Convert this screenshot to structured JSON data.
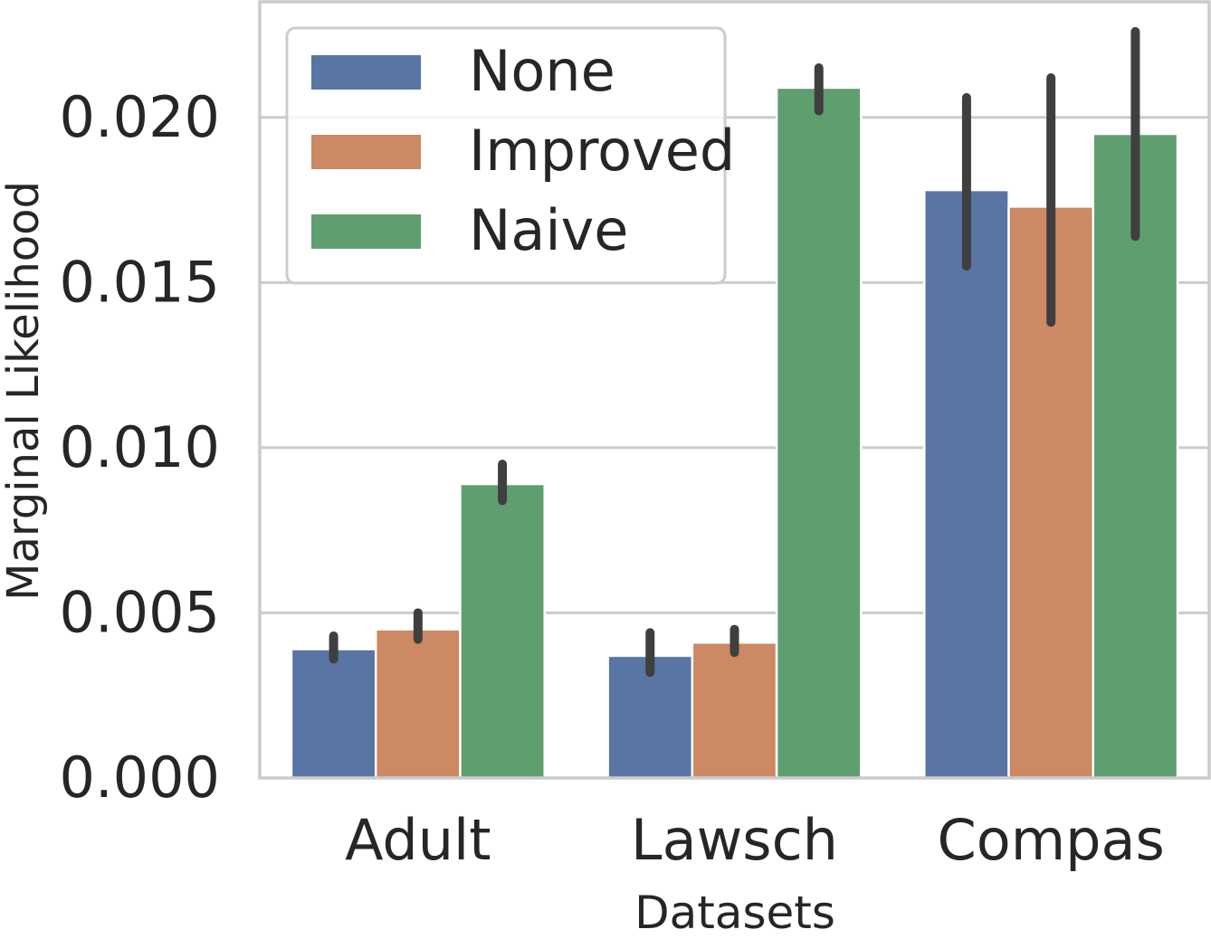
{
  "chart_data": {
    "type": "bar",
    "title": "",
    "xlabel": "Datasets",
    "ylabel": "Marginal Likelihood",
    "categories": [
      "Adult",
      "Lawsch",
      "Compas"
    ],
    "ylim": [
      0,
      0.0235
    ],
    "yticks": [
      0.0,
      0.005,
      0.01,
      0.015,
      0.02
    ],
    "ytick_labels": [
      "0.000",
      "0.005",
      "0.010",
      "0.015",
      "0.020"
    ],
    "grid": true,
    "legend_position": "top-left",
    "series": [
      {
        "name": "None",
        "color": "#5875a4",
        "values": [
          0.0039,
          0.0037,
          0.0178
        ],
        "err_low": [
          0.0036,
          0.0032,
          0.0155
        ],
        "err_high": [
          0.0043,
          0.0044,
          0.0206
        ]
      },
      {
        "name": "Improved",
        "color": "#cc8963",
        "values": [
          0.0045,
          0.0041,
          0.0173
        ],
        "err_low": [
          0.0042,
          0.0038,
          0.0138
        ],
        "err_high": [
          0.005,
          0.0045,
          0.0212
        ]
      },
      {
        "name": "Naive",
        "color": "#5f9e6e",
        "values": [
          0.0089,
          0.0209,
          0.0195
        ],
        "err_low": [
          0.0084,
          0.0202,
          0.0164
        ],
        "err_high": [
          0.0095,
          0.0215,
          0.0226
        ]
      }
    ],
    "errorbar_color": "#3f3f3f"
  }
}
